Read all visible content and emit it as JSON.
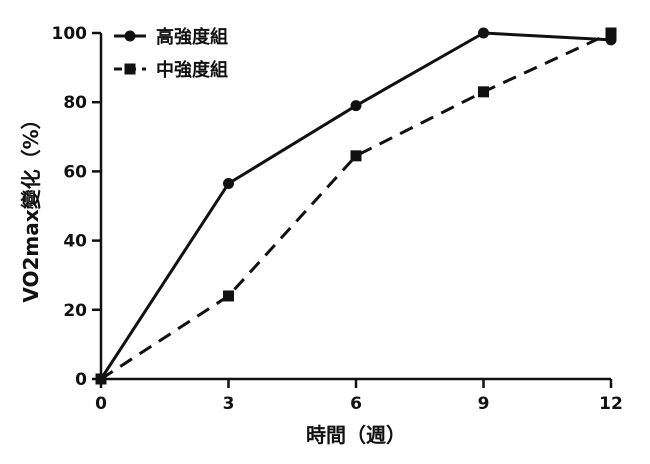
{
  "chart_data": {
    "type": "line",
    "xlabel": "時間（週）",
    "ylabel": "VO2max變化（%）",
    "x": [
      0,
      3,
      6,
      9,
      12
    ],
    "xlim": [
      0,
      12
    ],
    "ylim": [
      0,
      100
    ],
    "xticks": [
      "0",
      "3",
      "6",
      "9",
      "12"
    ],
    "yticks": [
      "0",
      "20",
      "40",
      "60",
      "80",
      "100"
    ],
    "grid": false,
    "legend_position": "top-left",
    "series": [
      {
        "name": "高強度組",
        "marker": "circle",
        "line_style": "solid",
        "color": "#111111",
        "values": [
          0,
          56.5,
          79,
          100,
          98
        ]
      },
      {
        "name": "中強度組",
        "marker": "square",
        "line_style": "dashed",
        "color": "#111111",
        "values": [
          0,
          24,
          64.5,
          83,
          100
        ]
      }
    ]
  }
}
